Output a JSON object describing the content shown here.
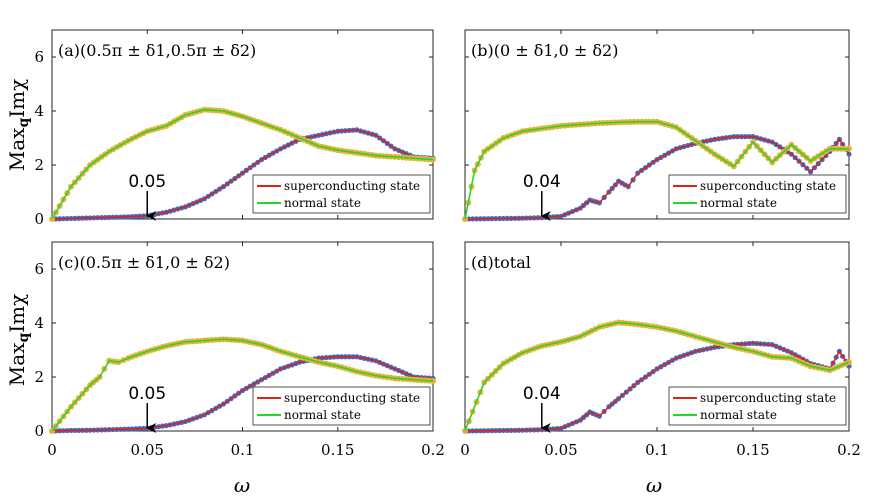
{
  "figure": {
    "ylabel": "MaxqImχ",
    "ylabel_parts": {
      "main": "Max",
      "sub": "q",
      "tail": "Imχ"
    },
    "xlabel": "ω"
  },
  "colors": {
    "sc_line": "#e0201a",
    "sc_marker": "#3b6fc4",
    "normal_line": "#29d42a",
    "normal_marker": "#e8b23a",
    "arrow": "#000000"
  },
  "chart_data": [
    {
      "type": "line",
      "id": "a",
      "title": "(a)(0.5π ± δ1,0.5π ± δ2)",
      "xlim": [
        0,
        0.2
      ],
      "ylim": [
        0,
        7
      ],
      "xticks": [
        0,
        0.05,
        0.1,
        0.15,
        0.2
      ],
      "xtick_labels": [
        "",
        "",
        "",
        "",
        ""
      ],
      "yticks": [
        0,
        2,
        4,
        6
      ],
      "ytick_labels": [
        "0",
        "2",
        "4",
        "6"
      ],
      "annotation": {
        "text": "0.05",
        "x": 0.05
      },
      "legend": [
        "superconducting state",
        "normal state"
      ],
      "series": [
        {
          "name": "superconducting state",
          "x": [
            0,
            0.01,
            0.02,
            0.03,
            0.04,
            0.05,
            0.06,
            0.07,
            0.08,
            0.09,
            0.1,
            0.11,
            0.12,
            0.13,
            0.14,
            0.15,
            0.16,
            0.17,
            0.18,
            0.19,
            0.2
          ],
          "y": [
            0,
            0.02,
            0.04,
            0.06,
            0.08,
            0.12,
            0.25,
            0.45,
            0.75,
            1.2,
            1.7,
            2.2,
            2.6,
            2.95,
            3.1,
            3.25,
            3.3,
            3.1,
            2.6,
            2.3,
            2.25
          ]
        },
        {
          "name": "normal state",
          "x": [
            0,
            0.01,
            0.02,
            0.03,
            0.04,
            0.05,
            0.06,
            0.07,
            0.08,
            0.09,
            0.1,
            0.11,
            0.12,
            0.13,
            0.14,
            0.15,
            0.16,
            0.17,
            0.18,
            0.19,
            0.2
          ],
          "y": [
            0,
            1.2,
            2.0,
            2.5,
            2.9,
            3.25,
            3.45,
            3.85,
            4.05,
            4.0,
            3.8,
            3.55,
            3.3,
            3.0,
            2.7,
            2.55,
            2.45,
            2.35,
            2.3,
            2.25,
            2.2
          ]
        }
      ]
    },
    {
      "type": "line",
      "id": "b",
      "title": "(b)(0 ± δ1,0 ± δ2)",
      "xlim": [
        0,
        0.2
      ],
      "ylim": [
        0,
        7
      ],
      "xticks": [
        0,
        0.05,
        0.1,
        0.15,
        0.2
      ],
      "xtick_labels": [
        "",
        "",
        "",
        "",
        ""
      ],
      "yticks": [
        0,
        2,
        4,
        6
      ],
      "ytick_labels": [
        "",
        "",
        "",
        ""
      ],
      "annotation": {
        "text": "0.04",
        "x": 0.04
      },
      "legend": [
        "superconducting state",
        "normal state"
      ],
      "series": [
        {
          "name": "superconducting state",
          "x": [
            0,
            0.01,
            0.02,
            0.03,
            0.04,
            0.05,
            0.06,
            0.065,
            0.07,
            0.075,
            0.08,
            0.085,
            0.09,
            0.1,
            0.11,
            0.12,
            0.13,
            0.14,
            0.15,
            0.16,
            0.17,
            0.18,
            0.19,
            0.195,
            0.2
          ],
          "y": [
            0,
            0.01,
            0.02,
            0.03,
            0.05,
            0.1,
            0.4,
            0.7,
            0.6,
            1.0,
            1.4,
            1.2,
            1.7,
            2.2,
            2.6,
            2.8,
            2.95,
            3.05,
            3.05,
            2.85,
            2.4,
            1.75,
            2.5,
            2.95,
            2.4
          ]
        },
        {
          "name": "normal state",
          "x": [
            0,
            0.005,
            0.01,
            0.02,
            0.03,
            0.04,
            0.05,
            0.06,
            0.07,
            0.08,
            0.09,
            0.1,
            0.11,
            0.12,
            0.13,
            0.14,
            0.15,
            0.16,
            0.17,
            0.18,
            0.19,
            0.2
          ],
          "y": [
            0,
            1.8,
            2.5,
            3.0,
            3.25,
            3.35,
            3.45,
            3.5,
            3.55,
            3.58,
            3.6,
            3.6,
            3.4,
            2.9,
            2.4,
            1.95,
            2.85,
            2.1,
            2.75,
            2.15,
            2.6,
            2.6
          ]
        }
      ]
    },
    {
      "type": "line",
      "id": "c",
      "title": "(c)(0.5π ± δ1,0 ± δ2)",
      "xlim": [
        0,
        0.2
      ],
      "ylim": [
        0,
        7
      ],
      "xticks": [
        0,
        0.05,
        0.1,
        0.15,
        0.2
      ],
      "xtick_labels": [
        "0",
        "0.05",
        "0.1",
        "0.15",
        "0.2"
      ],
      "yticks": [
        0,
        2,
        4,
        6
      ],
      "ytick_labels": [
        "0",
        "2",
        "4",
        "6"
      ],
      "annotation": {
        "text": "0.05",
        "x": 0.05
      },
      "legend": [
        "superconducting state",
        "normal state"
      ],
      "series": [
        {
          "name": "superconducting state",
          "x": [
            0,
            0.01,
            0.02,
            0.03,
            0.04,
            0.05,
            0.06,
            0.07,
            0.08,
            0.09,
            0.1,
            0.11,
            0.12,
            0.13,
            0.14,
            0.15,
            0.16,
            0.17,
            0.18,
            0.19,
            0.2
          ],
          "y": [
            0,
            0.02,
            0.03,
            0.05,
            0.07,
            0.1,
            0.2,
            0.35,
            0.6,
            1.0,
            1.5,
            1.9,
            2.3,
            2.55,
            2.7,
            2.75,
            2.75,
            2.6,
            2.3,
            2.0,
            1.95
          ]
        },
        {
          "name": "normal state",
          "x": [
            0,
            0.01,
            0.02,
            0.025,
            0.03,
            0.035,
            0.04,
            0.05,
            0.06,
            0.07,
            0.08,
            0.09,
            0.1,
            0.11,
            0.12,
            0.13,
            0.14,
            0.15,
            0.16,
            0.17,
            0.18,
            0.19,
            0.2
          ],
          "y": [
            0,
            0.9,
            1.7,
            2.0,
            2.6,
            2.55,
            2.7,
            2.95,
            3.15,
            3.3,
            3.35,
            3.4,
            3.35,
            3.2,
            2.95,
            2.75,
            2.55,
            2.4,
            2.2,
            2.05,
            1.95,
            1.9,
            1.85
          ]
        }
      ]
    },
    {
      "type": "line",
      "id": "d",
      "title": "(d)total",
      "xlim": [
        0,
        0.2
      ],
      "ylim": [
        0,
        7
      ],
      "xticks": [
        0,
        0.05,
        0.1,
        0.15,
        0.2
      ],
      "xtick_labels": [
        "0",
        "0.05",
        "0.1",
        "0.15",
        "0.2"
      ],
      "yticks": [
        0,
        2,
        4,
        6
      ],
      "ytick_labels": [
        "",
        "",
        "",
        ""
      ],
      "annotation": {
        "text": "0.04",
        "x": 0.04
      },
      "legend": [
        "superconducting state",
        "normal state"
      ],
      "series": [
        {
          "name": "superconducting state",
          "x": [
            0,
            0.01,
            0.02,
            0.03,
            0.04,
            0.05,
            0.06,
            0.065,
            0.07,
            0.075,
            0.08,
            0.09,
            0.1,
            0.11,
            0.12,
            0.13,
            0.14,
            0.15,
            0.16,
            0.17,
            0.18,
            0.19,
            0.195,
            0.2
          ],
          "y": [
            0,
            0.01,
            0.02,
            0.03,
            0.05,
            0.1,
            0.4,
            0.7,
            0.55,
            0.9,
            1.2,
            1.8,
            2.3,
            2.7,
            2.95,
            3.1,
            3.2,
            3.25,
            3.2,
            2.9,
            2.5,
            2.3,
            2.95,
            2.4
          ]
        },
        {
          "name": "normal state",
          "x": [
            0,
            0.01,
            0.02,
            0.03,
            0.04,
            0.05,
            0.06,
            0.07,
            0.08,
            0.09,
            0.1,
            0.11,
            0.12,
            0.13,
            0.14,
            0.15,
            0.16,
            0.17,
            0.18,
            0.19,
            0.2
          ],
          "y": [
            0,
            1.8,
            2.5,
            2.9,
            3.15,
            3.3,
            3.5,
            3.85,
            4.02,
            3.95,
            3.85,
            3.7,
            3.5,
            3.3,
            3.1,
            2.95,
            2.75,
            2.7,
            2.4,
            2.25,
            2.55
          ]
        }
      ]
    }
  ]
}
